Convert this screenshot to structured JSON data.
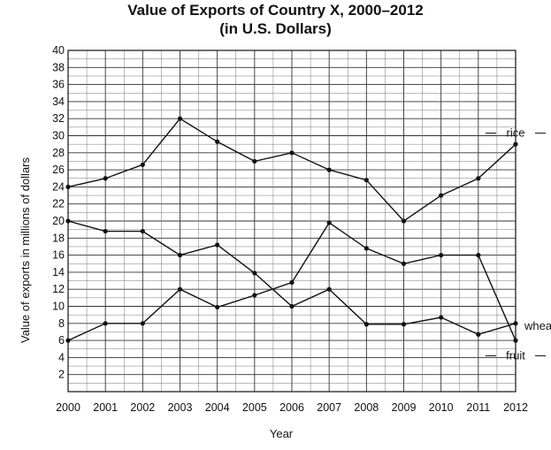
{
  "chart_data": {
    "type": "line",
    "title": "Value of Exports of Country X, 2000–2012",
    "subtitle": "(in U.S. Dollars)",
    "xlabel": "Year",
    "ylabel": "Value of exports in millions of dollars",
    "x": [
      2000,
      2001,
      2002,
      2003,
      2004,
      2005,
      2006,
      2007,
      2008,
      2009,
      2010,
      2011,
      2012
    ],
    "ylim": [
      0,
      40
    ],
    "yticks": [
      2,
      4,
      6,
      8,
      10,
      12,
      14,
      16,
      18,
      20,
      22,
      24,
      26,
      28,
      30,
      32,
      34,
      36,
      38,
      40
    ],
    "grid": true,
    "legend": "inline labels at right end of series",
    "series": [
      {
        "name": "rice",
        "values": [
          24,
          25,
          26.6,
          32,
          29.3,
          27,
          28,
          26,
          24.8,
          20,
          23,
          25,
          29
        ]
      },
      {
        "name": "wheat",
        "values": [
          20,
          18.8,
          18.8,
          16,
          17.2,
          13.9,
          10,
          12,
          7.9,
          7.9,
          8.7,
          6.7,
          8
        ]
      },
      {
        "name": "fruit",
        "values": [
          6,
          8,
          8,
          12,
          9.9,
          11.3,
          12.8,
          19.8,
          16.8,
          15,
          16,
          16,
          6
        ]
      }
    ]
  }
}
